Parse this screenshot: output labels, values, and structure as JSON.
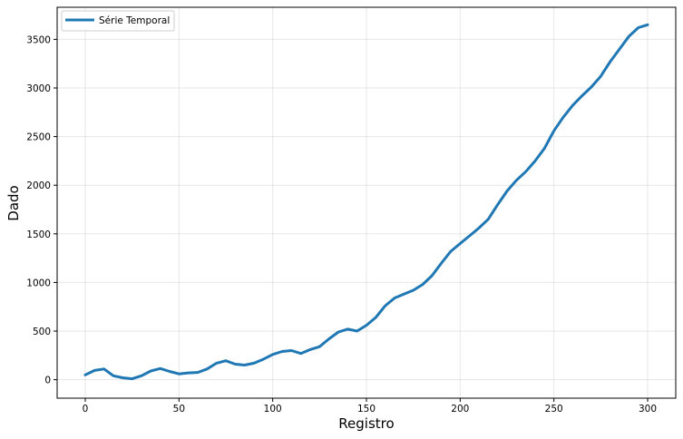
{
  "chart_data": {
    "type": "line",
    "xlabel": "Registro",
    "ylabel": "Dado",
    "xlim": [
      -15,
      315
    ],
    "ylim": [
      -190,
      3830
    ],
    "xticks": [
      0,
      50,
      100,
      150,
      200,
      250,
      300
    ],
    "yticks": [
      0,
      500,
      1000,
      1500,
      2000,
      2500,
      3000,
      3500
    ],
    "grid": true,
    "legend_position": "top-left",
    "series": [
      {
        "name": "Série Temporal",
        "color": "#1f77b4",
        "x": [
          0,
          5,
          10,
          15,
          20,
          25,
          30,
          35,
          40,
          45,
          50,
          55,
          60,
          65,
          70,
          75,
          80,
          85,
          90,
          95,
          100,
          105,
          110,
          115,
          120,
          125,
          130,
          135,
          140,
          145,
          150,
          155,
          160,
          165,
          170,
          175,
          180,
          185,
          190,
          195,
          200,
          205,
          210,
          215,
          220,
          225,
          230,
          235,
          240,
          245,
          250,
          255,
          260,
          265,
          270,
          275,
          280,
          285,
          290,
          295,
          300
        ],
        "y": [
          50,
          95,
          110,
          40,
          20,
          10,
          40,
          90,
          115,
          85,
          60,
          70,
          75,
          110,
          170,
          195,
          160,
          150,
          170,
          210,
          260,
          290,
          300,
          270,
          310,
          340,
          420,
          490,
          520,
          500,
          560,
          640,
          760,
          840,
          880,
          920,
          980,
          1070,
          1200,
          1320,
          1400,
          1480,
          1560,
          1650,
          1800,
          1940,
          2050,
          2140,
          2250,
          2380,
          2560,
          2700,
          2820,
          2920,
          3010,
          3120,
          3270,
          3400,
          3530,
          3620,
          3650
        ]
      }
    ]
  }
}
